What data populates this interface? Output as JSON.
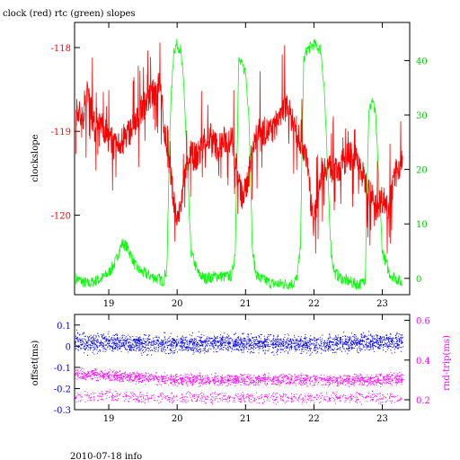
{
  "title": "clock (red) rtc (green) slopes",
  "footer": "2010-07-18 info",
  "colors": {
    "clock": "#ff0000",
    "rtc": "#00ff00",
    "offset": "#0000ff",
    "rndtrip": "#ff00ff",
    "axis_text": "#000000"
  },
  "chart_data": [
    {
      "type": "line",
      "title": "clock (red) rtc (green) slopes",
      "xlim": [
        18.5,
        23.4
      ],
      "x_ticks": [
        19,
        20,
        21,
        22,
        23
      ],
      "x_tick_labels": [
        "19",
        "20",
        "21",
        "22",
        "23"
      ],
      "ylabel_left": "clockslope",
      "ylim_left": [
        -120.95,
        -117.7
      ],
      "y_left_ticks": [
        -118,
        -119,
        -120
      ],
      "y_left_tick_labels": [
        "-118",
        "-119",
        "-120"
      ],
      "ylabel_right": "",
      "ylim_right": [
        -3,
        47
      ],
      "y_right_ticks": [
        0,
        10,
        20,
        30,
        40
      ],
      "y_right_tick_labels": [
        "0",
        "10",
        "20",
        "30",
        "40"
      ],
      "series": [
        {
          "name": "clock",
          "axis": "left",
          "x": [
            18.52,
            18.55,
            18.6,
            18.7,
            18.8,
            18.9,
            19.0,
            19.1,
            19.2,
            19.3,
            19.4,
            19.5,
            19.6,
            19.7,
            19.75,
            19.8,
            19.85,
            19.9,
            19.95,
            20.0,
            20.05,
            20.1,
            20.2,
            20.3,
            20.4,
            20.5,
            20.6,
            20.7,
            20.8,
            20.85,
            20.9,
            20.95,
            21.0,
            21.05,
            21.1,
            21.2,
            21.3,
            21.4,
            21.5,
            21.6,
            21.7,
            21.8,
            21.9,
            21.95,
            22.0,
            22.05,
            22.1,
            22.2,
            22.3,
            22.4,
            22.5,
            22.6,
            22.7,
            22.8,
            22.9,
            23.0,
            23.1,
            23.2,
            23.3
          ],
          "values": [
            -118.8,
            -118.7,
            -118.9,
            -118.5,
            -119.0,
            -118.9,
            -119.1,
            -119.2,
            -119.1,
            -119.0,
            -118.9,
            -118.7,
            -118.6,
            -118.5,
            -118.4,
            -118.9,
            -119.2,
            -119.5,
            -119.8,
            -120.1,
            -119.9,
            -119.6,
            -119.3,
            -119.3,
            -119.1,
            -119.1,
            -119.2,
            -119.1,
            -119.1,
            -119.3,
            -119.6,
            -119.8,
            -119.7,
            -119.5,
            -119.2,
            -119.0,
            -119.0,
            -119.0,
            -118.8,
            -118.7,
            -118.9,
            -119.1,
            -119.3,
            -119.8,
            -120.1,
            -119.8,
            -119.5,
            -119.4,
            -119.5,
            -119.4,
            -119.3,
            -119.3,
            -119.5,
            -119.7,
            -119.9,
            -119.8,
            -119.9,
            -119.5,
            -119.3
          ]
        },
        {
          "name": "rtc",
          "axis": "right",
          "x": [
            18.52,
            18.6,
            18.7,
            18.8,
            18.9,
            19.0,
            19.1,
            19.15,
            19.2,
            19.25,
            19.3,
            19.35,
            19.4,
            19.5,
            19.6,
            19.7,
            19.8,
            19.85,
            19.9,
            19.95,
            20.0,
            20.05,
            20.1,
            20.15,
            20.2,
            20.3,
            20.4,
            20.5,
            20.6,
            20.7,
            20.8,
            20.85,
            20.9,
            21.0,
            21.05,
            21.1,
            21.15,
            21.2,
            21.3,
            21.4,
            21.5,
            21.6,
            21.7,
            21.75,
            21.8,
            21.85,
            21.9,
            22.0,
            22.1,
            22.15,
            22.2,
            22.25,
            22.3,
            22.4,
            22.5,
            22.6,
            22.7,
            22.75,
            22.8,
            22.85,
            22.9,
            23.0,
            23.1,
            23.2,
            23.3
          ],
          "values": [
            0,
            -0.5,
            -1,
            -0.5,
            0,
            1,
            3,
            5,
            6.5,
            6,
            5,
            3.5,
            2,
            1,
            0.5,
            0,
            -0.5,
            2,
            30,
            42,
            43,
            42,
            35,
            20,
            5,
            1,
            0,
            0.2,
            0.5,
            0.3,
            0.5,
            5,
            40,
            38,
            30,
            5,
            1,
            0,
            -0.5,
            -1,
            -1,
            -1,
            -1,
            0,
            5,
            40,
            42,
            43,
            42,
            35,
            20,
            5,
            1,
            0,
            -0.5,
            -1,
            -1,
            0,
            30,
            33,
            30,
            5,
            1,
            0,
            -1
          ]
        }
      ]
    },
    {
      "type": "scatter",
      "xlim": [
        18.5,
        23.4
      ],
      "x_ticks": [
        19,
        20,
        21,
        22,
        23
      ],
      "x_tick_labels": [
        "19",
        "20",
        "21",
        "22",
        "23"
      ],
      "ylabel_left": "offset(ms)",
      "ylim_left": [
        -0.3,
        0.15
      ],
      "y_left_ticks": [
        0.1,
        0,
        -0.1,
        -0.2,
        -0.3
      ],
      "y_left_tick_labels": [
        "0.1",
        "0",
        "-0.1",
        "-0.2",
        "-0.3"
      ],
      "ylabel_right": "rnd-trip(ms)",
      "ylim_right": [
        0.15,
        0.63
      ],
      "y_right_ticks": [
        0.6,
        0.4,
        0.2
      ],
      "y_right_tick_labels": [
        "0.6",
        "0.4",
        "0.2"
      ],
      "series": [
        {
          "name": "offset",
          "axis": "left",
          "x": [
            18.5,
            19.0,
            19.5,
            20.0,
            20.5,
            21.0,
            21.5,
            22.0,
            22.5,
            23.0,
            23.3
          ],
          "center": [
            0.02,
            0.015,
            0.01,
            0.01,
            0.015,
            0.015,
            0.01,
            0.01,
            0.015,
            0.02,
            0.02
          ],
          "spread": [
            0.07,
            0.06,
            0.06,
            0.06,
            0.06,
            0.06,
            0.06,
            0.06,
            0.06,
            0.06,
            0.06
          ]
        },
        {
          "name": "rnd-trip",
          "axis": "right",
          "x": [
            18.5,
            19.0,
            19.5,
            20.0,
            20.5,
            21.0,
            21.5,
            22.0,
            22.5,
            23.0,
            23.3
          ],
          "center": [
            0.33,
            0.32,
            0.31,
            0.3,
            0.3,
            0.3,
            0.3,
            0.3,
            0.3,
            0.3,
            0.31
          ],
          "lower_band": [
            0.22,
            0.22,
            0.21,
            0.21,
            0.21,
            0.21,
            0.21,
            0.21,
            0.21,
            0.21,
            0.21
          ]
        }
      ]
    }
  ]
}
